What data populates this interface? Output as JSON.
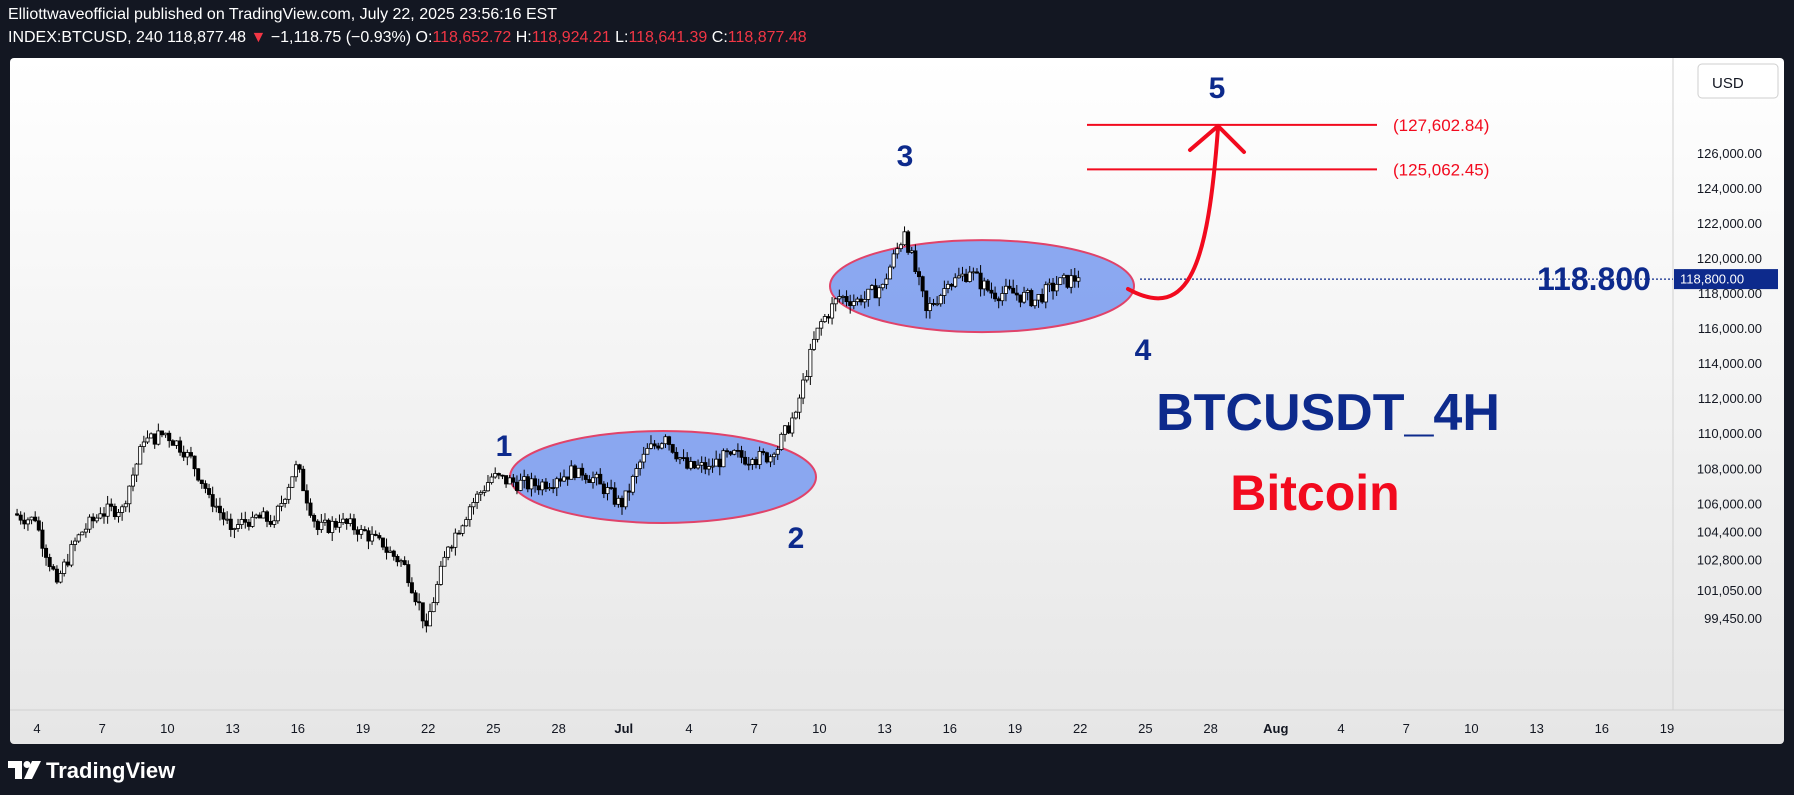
{
  "header": {
    "publisher_line": "Elliottwaveofficial published on TradingView.com, July 22, 2025 23:56:16 EST",
    "symbol": "INDEX:BTCUSD, 240",
    "last_price": "118,877.48",
    "change_arrow": "▼",
    "change": "−1,118.75 (−0.93%)",
    "open_label": "O:",
    "open": "118,652.72",
    "high_label": "H:",
    "high": "118,924.21",
    "low_label": "L:",
    "low": "118,641.39",
    "close_label": "C:",
    "close": "118,877.48"
  },
  "footer": {
    "brand": "TradingView"
  },
  "colors": {
    "accent_blue": "#0d2a8c",
    "accent_red": "#f20a1e",
    "ellipse_fill": "#7e9ef0",
    "ellipse_stroke": "#e0436a",
    "candle_up": "#ffffff",
    "candle_down": "#000000"
  },
  "chart_data": {
    "type": "candlestick",
    "currency_label": "USD",
    "y_ticks": [
      "126,000.00",
      "124,000.00",
      "122,000.00",
      "120,000.00",
      "118,000.00",
      "116,000.00",
      "114,000.00",
      "112,000.00",
      "110,000.00",
      "108,000.00",
      "106,000.00",
      "104,400.00",
      "102,800.00",
      "101,050.00",
      "99,450.00"
    ],
    "x_ticks": [
      "4",
      "7",
      "10",
      "13",
      "16",
      "19",
      "22",
      "25",
      "28",
      "Jul",
      "4",
      "7",
      "10",
      "13",
      "16",
      "19",
      "22",
      "25",
      "28",
      "Aug",
      "4",
      "7",
      "10",
      "13",
      "16",
      "19"
    ],
    "price_scale": "log",
    "price_series": [
      [
        "2025-06-03",
        105400
      ],
      [
        "2025-06-04",
        105000
      ],
      [
        "2025-06-05",
        101500
      ],
      [
        "2025-06-06",
        104200
      ],
      [
        "2025-06-07",
        105400
      ],
      [
        "2025-06-08",
        105800
      ],
      [
        "2025-06-09",
        109500
      ],
      [
        "2025-06-10",
        110000
      ],
      [
        "2025-06-11",
        108900
      ],
      [
        "2025-06-12",
        106500
      ],
      [
        "2025-06-13",
        104500
      ],
      [
        "2025-06-14",
        105200
      ],
      [
        "2025-06-15",
        105000
      ],
      [
        "2025-06-16",
        108200
      ],
      [
        "2025-06-17",
        104500
      ],
      [
        "2025-06-18",
        104900
      ],
      [
        "2025-06-19",
        104500
      ],
      [
        "2025-06-20",
        103500
      ],
      [
        "2025-06-21",
        102500
      ],
      [
        "2025-06-22",
        99000
      ],
      [
        "2025-06-23",
        103500
      ],
      [
        "2025-06-24",
        105800
      ],
      [
        "2025-06-25",
        107500
      ],
      [
        "2025-06-26",
        107200
      ],
      [
        "2025-06-27",
        107000
      ],
      [
        "2025-06-28",
        107400
      ],
      [
        "2025-06-29",
        108000
      ],
      [
        "2025-06-30",
        107100
      ],
      [
        "2025-07-01",
        105800
      ],
      [
        "2025-07-02",
        108800
      ],
      [
        "2025-07-03",
        109800
      ],
      [
        "2025-07-04",
        108000
      ],
      [
        "2025-07-05",
        108100
      ],
      [
        "2025-07-06",
        108800
      ],
      [
        "2025-07-07",
        108500
      ],
      [
        "2025-07-08",
        108800
      ],
      [
        "2025-07-09",
        111200
      ],
      [
        "2025-07-10",
        116000
      ],
      [
        "2025-07-11",
        117800
      ],
      [
        "2025-07-12",
        117500
      ],
      [
        "2025-07-13",
        118500
      ],
      [
        "2025-07-14",
        121500
      ],
      [
        "2025-07-15",
        117000
      ],
      [
        "2025-07-16",
        118500
      ],
      [
        "2025-07-17",
        119200
      ],
      [
        "2025-07-18",
        118000
      ],
      [
        "2025-07-19",
        118000
      ],
      [
        "2025-07-20",
        117600
      ],
      [
        "2025-07-21",
        118500
      ],
      [
        "2025-07-22",
        118877
      ]
    ],
    "wave_labels": [
      "1",
      "2",
      "3",
      "4",
      "5"
    ],
    "horizontal_level": "118,800.00",
    "level_label": "118.800",
    "targets": [
      "(127,602.84)",
      "(125,062.45)"
    ],
    "title": "BTCUSDT_4H",
    "subtitle": "Bitcoin"
  }
}
